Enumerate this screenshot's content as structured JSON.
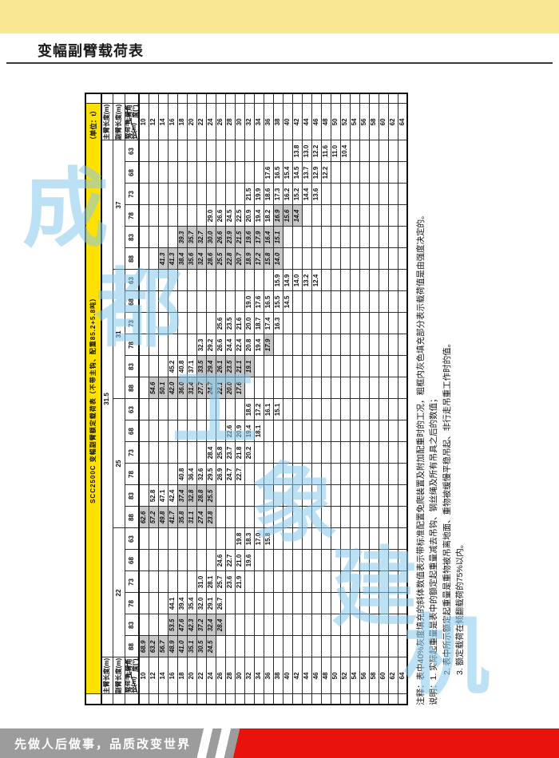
{
  "page": {
    "title": "变幅副臂载荷表",
    "footer_slogan": "先做人后做事，品质改变世界"
  },
  "watermark": {
    "chars": [
      "成",
      "都",
      "工",
      "象",
      "建",
      "机"
    ]
  },
  "table": {
    "title": "SCC2500C 变幅副臂额定载荷表（不带主钩、配重85.2+5.8吨）",
    "unit": "（单位：t）",
    "main_boom_label": "主臂长度(m)",
    "jib_label": "副臂长度(m)",
    "angle_label": "主臂角\n度(°)",
    "radius_label": "载荷半\n径(m)",
    "main_boom_value": "31.5",
    "radii": [
      10,
      12,
      14,
      16,
      18,
      20,
      22,
      24,
      26,
      28,
      30,
      32,
      34,
      36,
      38,
      40,
      42,
      44,
      46,
      48,
      50,
      52,
      54,
      56,
      58,
      60,
      62,
      64
    ],
    "groups": [
      {
        "jib": "22",
        "cols": [
          {
            "angle": "88",
            "start": 10,
            "vals": [
              "68.9",
              "63.2",
              "56.7",
              "48.9",
              "41.0",
              "35.1",
              "30.5",
              "24.5"
            ],
            "hl": [
              1,
              1,
              1,
              1,
              1,
              1,
              1,
              1
            ]
          },
          {
            "angle": "83",
            "start": 16,
            "vals": [
              "53.5",
              "47.6",
              "42.3",
              "37.2",
              "32.4",
              "28.4"
            ],
            "hl": [
              1,
              1,
              1,
              1,
              1,
              1
            ]
          },
          {
            "angle": "78",
            "start": 16,
            "vals": [
              "44.1",
              "39.4",
              "35.4",
              "32.0",
              "29.1",
              "26.7"
            ],
            "hl": [
              0,
              0,
              0,
              0,
              0,
              0
            ]
          },
          {
            "angle": "73",
            "start": 22,
            "vals": [
              "31.0",
              "28.1",
              "25.7",
              "23.6",
              "21.9"
            ],
            "hl": [
              0,
              0,
              0,
              0,
              0
            ]
          },
          {
            "angle": "68",
            "start": 26,
            "vals": [
              "24.6",
              "22.7",
              "21.0",
              "19.6"
            ],
            "hl": [
              0,
              0,
              0,
              0
            ]
          },
          {
            "angle": "63",
            "start": 30,
            "vals": [
              "19.8",
              "18.3",
              "17.0",
              "15.8"
            ],
            "hl": [
              0,
              0,
              0,
              0
            ]
          }
        ]
      },
      {
        "jib": "25",
        "cols": [
          {
            "angle": "88",
            "start": 10,
            "vals": [
              "62.6",
              "57.2",
              "49.8",
              "41.7",
              "35.8",
              "31.1",
              "27.4",
              "23.8"
            ],
            "hl": [
              1,
              1,
              1,
              1,
              1,
              1,
              1,
              1
            ]
          },
          {
            "angle": "83",
            "start": 12,
            "vals": [
              "52.8",
              "47.1",
              "42.4",
              "37.4",
              "32.8",
              "28.8",
              "25.5"
            ],
            "hl": [
              0,
              0,
              0,
              1,
              1,
              1,
              1
            ]
          },
          {
            "angle": "78",
            "start": 18,
            "vals": [
              "40.8",
              "36.4",
              "32.6",
              "29.5",
              "26.9",
              "24.7",
              "22.7"
            ],
            "hl": [
              0,
              0,
              0,
              0,
              0,
              0,
              0
            ]
          },
          {
            "angle": "73",
            "start": 24,
            "vals": [
              "28.4",
              "25.8",
              "23.7",
              "21.8",
              "20.2"
            ],
            "hl": [
              0,
              0,
              0,
              0,
              0
            ]
          },
          {
            "angle": "68",
            "start": 28,
            "vals": [
              "22.6",
              "20.9",
              "19.4",
              "18.1"
            ],
            "hl": [
              0,
              0,
              0,
              0
            ]
          },
          {
            "angle": "63",
            "start": 32,
            "vals": [
              "18.6",
              "17.2",
              "16.1",
              "15.1"
            ],
            "hl": [
              0,
              0,
              0,
              0
            ]
          }
        ]
      },
      {
        "jib": "31",
        "cols": [
          {
            "angle": "88",
            "start": 12,
            "vals": [
              "54.6",
              "50.1",
              "42.0",
              "36.0",
              "31.4",
              "27.7",
              "24.7",
              "22.1",
              "20.0",
              "17.6"
            ],
            "hl": [
              1,
              1,
              1,
              1,
              1,
              1,
              1,
              1,
              1,
              1
            ]
          },
          {
            "angle": "83",
            "start": 16,
            "vals": [
              "45.2",
              "40.8",
              "37.1",
              "33.5",
              "29.4",
              "26.1",
              "23.5",
              "21.1",
              "19.1"
            ],
            "hl": [
              0,
              0,
              0,
              1,
              1,
              1,
              1,
              1,
              1
            ]
          },
          {
            "angle": "78",
            "start": 22,
            "vals": [
              "32.3",
              "29.2",
              "26.6",
              "24.4",
              "22.4",
              "20.8",
              "19.4",
              "17.9"
            ],
            "hl": [
              0,
              0,
              0,
              0,
              0,
              0,
              0,
              1
            ]
          },
          {
            "angle": "73",
            "start": 26,
            "vals": [
              "25.6",
              "23.5",
              "21.6",
              "20.0",
              "18.7",
              "17.4",
              "16.3"
            ],
            "hl": [
              0,
              0,
              0,
              0,
              0,
              0,
              0
            ]
          },
          {
            "angle": "68",
            "start": 32,
            "vals": [
              "19.0",
              "17.6",
              "16.5",
              "15.5",
              "14.5"
            ],
            "hl": [
              0,
              0,
              0,
              0,
              0
            ]
          },
          {
            "angle": "63",
            "start": 38,
            "vals": [
              "15.9",
              "14.9",
              "14.0",
              "13.2",
              "12.4"
            ],
            "hl": [
              0,
              0,
              0,
              0,
              0
            ]
          }
        ]
      },
      {
        "jib": "37",
        "cols": [
          {
            "angle": "88",
            "start": 14,
            "vals": [
              "41.3",
              "41.3",
              "38.4",
              "35.6",
              "32.4",
              "28.6",
              "25.5",
              "22.8",
              "20.7",
              "18.9",
              "17.2",
              "15.8",
              "14.0"
            ],
            "hl": [
              1,
              1,
              1,
              1,
              1,
              1,
              1,
              1,
              1,
              1,
              1,
              1,
              1
            ]
          },
          {
            "angle": "83",
            "start": 18,
            "vals": [
              "39.3",
              "35.7",
              "32.7",
              "30.0",
              "26.6",
              "23.9",
              "21.5",
              "19.6",
              "17.9",
              "16.4",
              "15.1"
            ],
            "hl": [
              1,
              1,
              1,
              1,
              1,
              1,
              1,
              1,
              1,
              1,
              1
            ]
          },
          {
            "angle": "78",
            "start": 24,
            "vals": [
              "29.0",
              "26.6",
              "24.5",
              "22.5",
              "20.9",
              "19.4",
              "18.2",
              "16.9",
              "15.6",
              "14.4"
            ],
            "hl": [
              0,
              0,
              0,
              0,
              0,
              0,
              0,
              1,
              1,
              1
            ]
          },
          {
            "angle": "73",
            "start": 32,
            "vals": [
              "21.5",
              "19.9",
              "18.6",
              "17.3",
              "16.2",
              "15.2",
              "14.4",
              "13.6"
            ],
            "hl": [
              0,
              0,
              0,
              0,
              0,
              0,
              0,
              0
            ]
          },
          {
            "angle": "68",
            "start": 36,
            "vals": [
              "17.6",
              "16.5",
              "15.4",
              "14.5",
              "13.7",
              "12.9",
              "12.2"
            ],
            "hl": [
              0,
              0,
              0,
              0,
              0,
              0,
              0
            ]
          },
          {
            "angle": "63",
            "start": 42,
            "vals": [
              "13.8",
              "13.0",
              "12.2",
              "11.6",
              "11.0",
              "10.4"
            ],
            "hl": [
              0,
              0,
              0,
              0,
              0,
              0
            ]
          }
        ]
      }
    ],
    "notes": [
      "注释：表中40%灰度填充的斜体数值表示带标准配置免爬装置及附加配重时的工况，粗框内灰色填充部分表示载荷值是由强度决定的。",
      "说明：1. 实际起重量是表中的额定起重量减去吊钩、钢丝绳及所有吊具之后的数值；",
      "2. 表中所示额定起重量是重物被吊离地面、重物被缓慢平稳吊起、非行走吊重工作时的值。",
      "3. 额定载荷在倾翻载荷的75%以内。"
    ]
  }
}
